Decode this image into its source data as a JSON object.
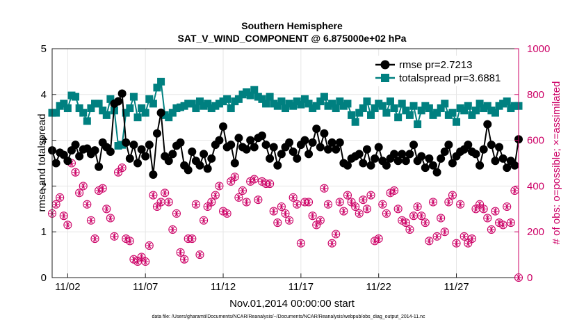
{
  "chart_data": {
    "type": "line",
    "title": "Southern Hemisphere",
    "subtitle": "SAT_V_WIND_COMPONENT @ 6.875000e+02 hPa",
    "xlabel": "Nov.01,2014 00:00:00 start",
    "ylabel_left": "rmse and totalspread",
    "ylabel_right": "# of obs: o=possible; ×=assimilated",
    "ylim_left": [
      0,
      5
    ],
    "ylim_right": [
      0,
      1000
    ],
    "yticks_left": [
      "0",
      "1",
      "2",
      "3",
      "4",
      "5"
    ],
    "yticks_right": [
      "0",
      "200",
      "400",
      "600",
      "800",
      "1000"
    ],
    "xlim": [
      0,
      120
    ],
    "xticks": [
      {
        "pos": 4,
        "label": "11/02"
      },
      {
        "pos": 24,
        "label": "11/07"
      },
      {
        "pos": 44,
        "label": "11/12"
      },
      {
        "pos": 64,
        "label": "11/17"
      },
      {
        "pos": 84,
        "label": "11/22"
      },
      {
        "pos": 104,
        "label": "11/27"
      }
    ],
    "colors": {
      "rmse": "#000000",
      "spread": "#008080",
      "obs": "#cc0066"
    },
    "series": [
      {
        "name": "rmse pr=2.7213",
        "axis": "left",
        "values": [
          2.78,
          2.5,
          2.73,
          2.68,
          2.55,
          2.78,
          2.9,
          2.65,
          2.8,
          2.82,
          2.7,
          2.78,
          2.42,
          2.95,
          2.85,
          2.75,
          3.8,
          3.85,
          4.02,
          2.95,
          2.6,
          2.9,
          2.5,
          2.8,
          2.65,
          2.9,
          2.25,
          3.15,
          3.6,
          2.65,
          2.55,
          2.7,
          2.88,
          2.95,
          2.45,
          2.35,
          2.75,
          2.55,
          2.45,
          2.7,
          2.38,
          2.6,
          2.9,
          3.0,
          3.3,
          2.85,
          2.9,
          2.5,
          3.05,
          2.85,
          2.8,
          3.0,
          2.85,
          3.05,
          3.1,
          2.9,
          2.6,
          2.85,
          2.45,
          2.7,
          2.85,
          2.95,
          2.75,
          2.6,
          2.9,
          3.0,
          2.7,
          2.95,
          3.25,
          2.85,
          3.15,
          2.8,
          2.95,
          2.8,
          2.95,
          2.5,
          2.45,
          2.6,
          2.65,
          2.7,
          2.5,
          2.8,
          2.45,
          2.6,
          2.85,
          2.55,
          2.45,
          2.6,
          2.7,
          2.55,
          2.7,
          2.55,
          2.7,
          2.9,
          2.55,
          2.65,
          2.4,
          2.6,
          2.45,
          2.3,
          2.6,
          2.75,
          2.9,
          2.5,
          2.65,
          2.75,
          2.8,
          2.9,
          2.75,
          2.7,
          2.45,
          2.8,
          3.35,
          2.9,
          2.55,
          2.85,
          2.6,
          2.4,
          2.55,
          2.45,
          3.02
        ]
      },
      {
        "name": "totalspread pr=3.6881",
        "axis": "left",
        "values": [
          3.6,
          3.6,
          3.75,
          3.8,
          3.7,
          3.98,
          3.95,
          3.7,
          3.6,
          3.42,
          3.7,
          3.8,
          3.8,
          3.65,
          3.55,
          3.9,
          3.65,
          2.88,
          2.9,
          3.6,
          3.7,
          3.95,
          3.5,
          3.7,
          3.6,
          3.9,
          3.8,
          4.15,
          4.28,
          3.55,
          3.5,
          3.6,
          3.7,
          3.72,
          3.75,
          3.8,
          3.8,
          3.7,
          3.85,
          3.75,
          3.8,
          3.7,
          3.75,
          3.8,
          3.85,
          3.9,
          3.7,
          3.85,
          3.9,
          4.0,
          4.05,
          3.98,
          4.1,
          3.95,
          3.9,
          3.8,
          3.95,
          3.8,
          3.75,
          3.85,
          3.7,
          3.8,
          3.75,
          3.85,
          3.78,
          3.9,
          3.8,
          3.7,
          3.75,
          3.85,
          3.95,
          3.75,
          3.8,
          3.7,
          3.85,
          3.75,
          3.8,
          3.55,
          3.4,
          3.6,
          3.7,
          3.85,
          3.55,
          3.7,
          3.8,
          3.75,
          3.6,
          3.85,
          3.7,
          3.5,
          3.8,
          3.65,
          3.55,
          3.75,
          3.35,
          3.65,
          3.75,
          3.7,
          3.55,
          3.6,
          3.7,
          3.8,
          3.55,
          3.6,
          3.4,
          3.7,
          3.65,
          3.75,
          3.55,
          3.65,
          3.8,
          3.7,
          3.75,
          3.65,
          3.6,
          3.75,
          3.8,
          3.85,
          3.7,
          3.75,
          3.75
        ]
      },
      {
        "name": "obs possible",
        "axis": "right",
        "values": [
          280,
          320,
          350,
          270,
          230,
          500,
          460,
          370,
          400,
          320,
          250,
          170,
          380,
          390,
          300,
          260,
          180,
          460,
          480,
          170,
          160,
          80,
          70,
          90,
          70,
          140,
          360,
          310,
          330,
          370,
          330,
          210,
          280,
          110,
          80,
          170,
          170,
          320,
          100,
          250,
          310,
          330,
          360,
          400,
          290,
          280,
          420,
          440,
          350,
          380,
          330,
          420,
          430,
          340,
          420,
          410,
          410,
          290,
          240,
          310,
          280,
          250,
          350,
          320,
          150,
          330,
          330,
          270,
          230,
          250,
          390,
          320,
          150,
          190,
          330,
          290,
          360,
          330,
          310,
          280,
          340,
          300,
          360,
          160,
          170,
          320,
          280,
          370,
          380,
          300,
          250,
          240,
          210,
          270,
          310,
          270,
          240,
          160,
          330,
          180,
          260,
          200,
          330,
          360,
          150,
          320,
          180,
          150,
          170,
          300,
          320,
          300,
          260,
          210,
          290,
          240,
          230,
          310,
          240,
          380,
          0
        ]
      },
      {
        "name": "obs assimilated",
        "axis": "right",
        "values": [
          280,
          320,
          350,
          270,
          230,
          500,
          460,
          370,
          400,
          320,
          250,
          170,
          380,
          390,
          300,
          260,
          180,
          460,
          480,
          170,
          160,
          80,
          70,
          90,
          70,
          140,
          360,
          310,
          330,
          370,
          330,
          210,
          280,
          110,
          80,
          170,
          170,
          320,
          100,
          250,
          310,
          330,
          360,
          400,
          290,
          280,
          420,
          440,
          350,
          380,
          330,
          420,
          430,
          340,
          420,
          410,
          410,
          290,
          240,
          310,
          280,
          250,
          350,
          320,
          150,
          330,
          330,
          270,
          230,
          250,
          390,
          320,
          150,
          190,
          330,
          290,
          360,
          330,
          310,
          280,
          340,
          300,
          360,
          160,
          170,
          320,
          280,
          370,
          380,
          300,
          250,
          240,
          210,
          270,
          310,
          270,
          240,
          160,
          330,
          180,
          260,
          200,
          330,
          360,
          150,
          320,
          180,
          150,
          170,
          300,
          320,
          300,
          260,
          210,
          290,
          240,
          230,
          310,
          240,
          380,
          0
        ]
      }
    ],
    "legend_position": "top-right",
    "footnote": "data file: /Users/gharamti/Documents/NCAR/Reanalysis/~/Documents/NCAR/Reanalysis/webpub/obs_diag_output_2014-11.nc"
  }
}
